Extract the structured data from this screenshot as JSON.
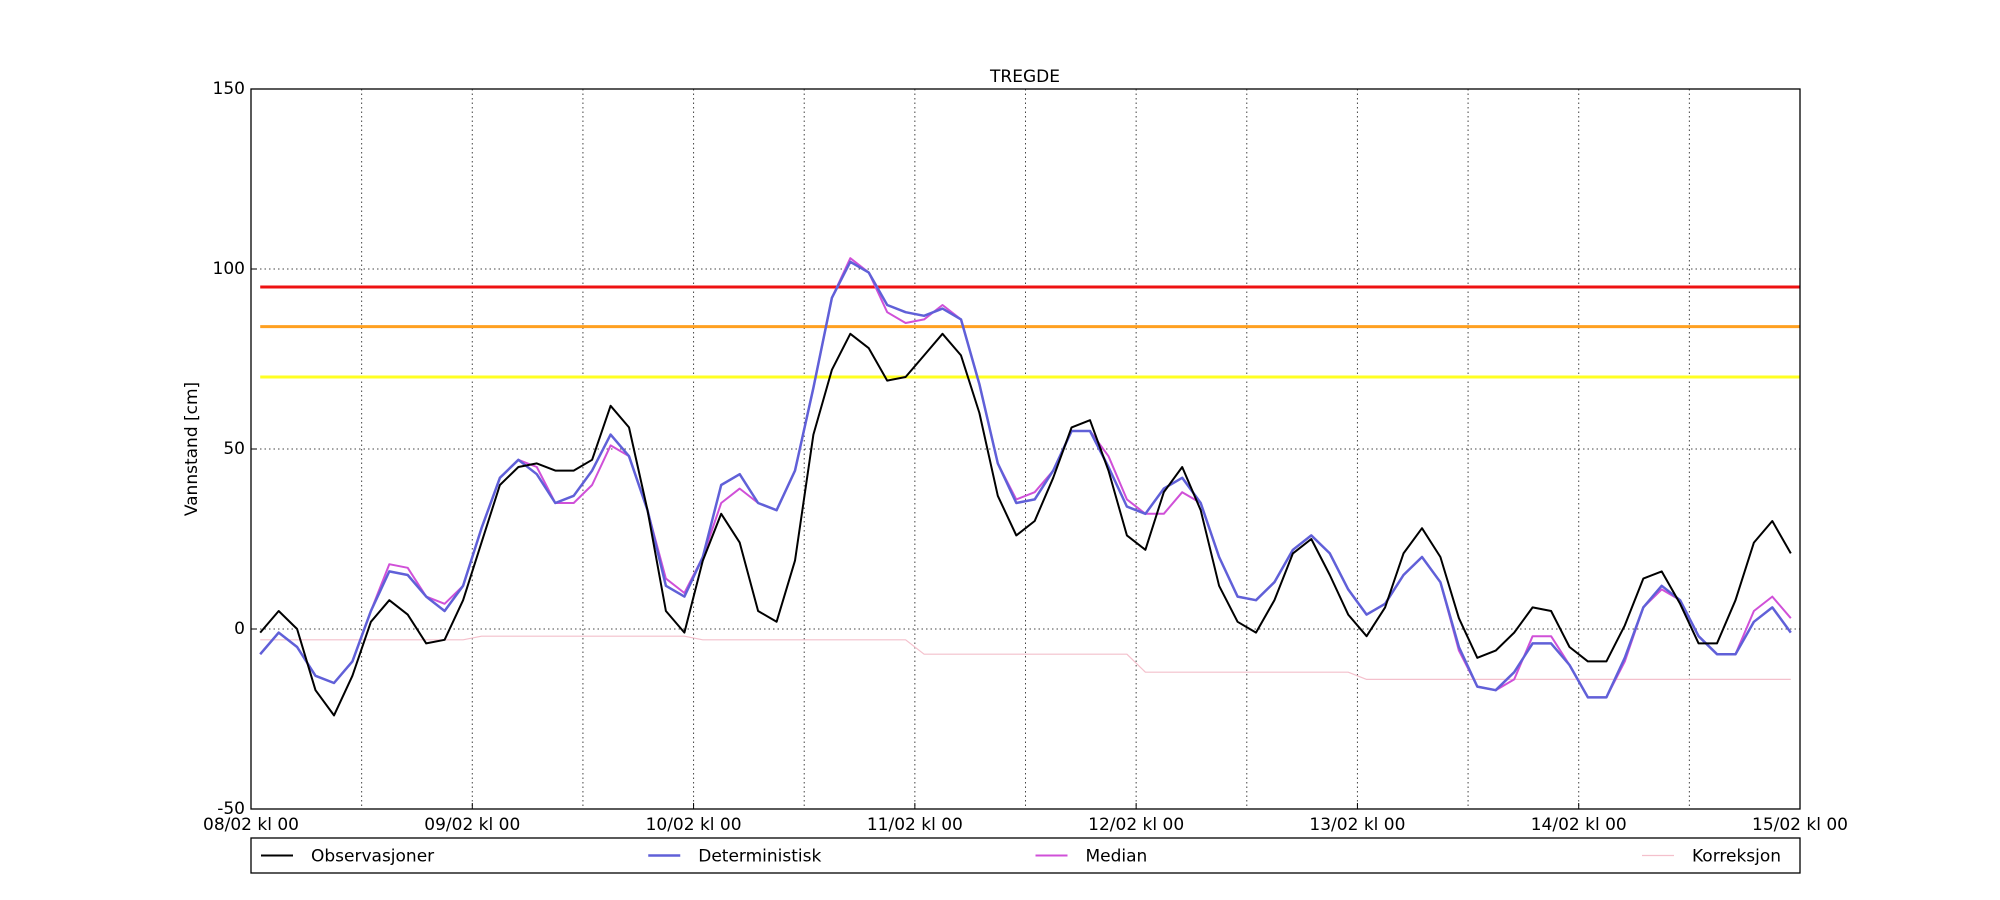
{
  "chart_data": {
    "type": "line",
    "title": "TREGDE",
    "y_label": "Vannstand [cm]",
    "x": [
      1,
      3,
      5,
      7,
      9,
      11,
      13,
      15,
      17,
      19,
      21,
      23,
      25,
      27,
      29,
      31,
      33,
      35,
      37,
      39,
      41,
      43,
      45,
      47,
      49,
      51,
      53,
      55,
      57,
      59,
      61,
      63,
      65,
      67,
      69,
      71,
      73,
      75,
      77,
      79,
      81,
      83,
      85,
      87,
      89,
      91,
      93,
      95,
      97,
      99,
      101,
      103,
      105,
      107,
      109,
      111,
      113,
      115,
      117,
      119,
      121,
      123,
      125,
      127,
      129,
      131,
      133,
      135,
      137,
      139,
      141,
      143,
      145,
      147,
      149,
      151,
      153,
      155,
      157,
      159,
      161,
      163,
      165,
      167
    ],
    "xlim": [
      0,
      168
    ],
    "xticks": [
      {
        "value": 0,
        "label": "08/02 kl 00"
      },
      {
        "value": 24,
        "label": "09/02 kl 00"
      },
      {
        "value": 48,
        "label": "10/02 kl 00"
      },
      {
        "value": 72,
        "label": "11/02 kl 00"
      },
      {
        "value": 96,
        "label": "12/02 kl 00"
      },
      {
        "value": 120,
        "label": "13/02 kl 00"
      },
      {
        "value": 144,
        "label": "14/02 kl 00"
      },
      {
        "value": 168,
        "label": "15/02 kl 00"
      }
    ],
    "xminor": [
      12,
      36,
      60,
      84,
      108,
      132,
      156
    ],
    "ylim": [
      -50,
      150
    ],
    "yticks": [
      -50,
      0,
      50,
      100,
      150
    ],
    "grid": true,
    "thresholds": [
      {
        "value": 95,
        "color": "#ee1111"
      },
      {
        "value": 84,
        "color": "#ffa020"
      },
      {
        "value": 70,
        "color": "#ffff22"
      }
    ],
    "series": [
      {
        "name": "Observasjoner",
        "color": "#000000",
        "width": 2,
        "values": [
          -1,
          5,
          0,
          -17,
          -24,
          -13,
          2,
          8,
          4,
          -4,
          -3,
          8,
          24,
          40,
          45,
          46,
          44,
          44,
          47,
          62,
          56,
          33,
          5,
          -1,
          19,
          32,
          24,
          5,
          2,
          19,
          54,
          72,
          82,
          78,
          69,
          70,
          76,
          82,
          76,
          60,
          37,
          26,
          30,
          42,
          56,
          58,
          44,
          26,
          22,
          38,
          45,
          33,
          12,
          2,
          -1,
          8,
          21,
          25,
          15,
          4,
          -2,
          6,
          21,
          28,
          20,
          3,
          -8,
          -6,
          -1,
          6,
          5,
          -5,
          -9,
          -9,
          1,
          14,
          16,
          7,
          -4,
          -4,
          8,
          24,
          30,
          21
        ]
      },
      {
        "name": "Deterministisk",
        "color": "#6060d8",
        "width": 2.5,
        "values": [
          -7,
          -1,
          -5,
          -13,
          -15,
          -9,
          5,
          16,
          15,
          9,
          5,
          12,
          28,
          42,
          47,
          43,
          35,
          37,
          44,
          54,
          48,
          33,
          12,
          9,
          20,
          40,
          43,
          35,
          33,
          44,
          67,
          92,
          102,
          99,
          90,
          88,
          87,
          89,
          86,
          68,
          46,
          35,
          36,
          44,
          55,
          55,
          45,
          34,
          32,
          39,
          42,
          35,
          20,
          9,
          8,
          13,
          22,
          26,
          21,
          11,
          4,
          7,
          15,
          20,
          13,
          -5,
          -16,
          -17,
          -12,
          -4,
          -4,
          -10,
          -19,
          -19,
          -8,
          6,
          12,
          8,
          -2,
          -7,
          -7,
          2,
          6,
          -1
        ]
      },
      {
        "name": "Median",
        "color": "#d050d8",
        "width": 2,
        "values": [
          -7,
          -1,
          -5,
          -13,
          -15,
          -9,
          5,
          18,
          17,
          9,
          7,
          12,
          28,
          42,
          47,
          45,
          35,
          35,
          40,
          51,
          48,
          33,
          14,
          10,
          20,
          35,
          39,
          35,
          33,
          44,
          67,
          92,
          103,
          99,
          88,
          85,
          86,
          90,
          86,
          68,
          46,
          36,
          38,
          44,
          55,
          55,
          48,
          36,
          32,
          32,
          38,
          35,
          20,
          9,
          8,
          13,
          22,
          26,
          21,
          11,
          4,
          7,
          15,
          20,
          13,
          -6,
          -16,
          -17,
          -14,
          -2,
          -2,
          -10,
          -19,
          -19,
          -9,
          6,
          11,
          8,
          -2,
          -7,
          -7,
          5,
          9,
          3
        ]
      },
      {
        "name": "Korreksjon",
        "color": "#f4c0cc",
        "width": 1.2,
        "values": [
          -3,
          -3,
          -3,
          -3,
          -3,
          -3,
          -3,
          -3,
          -3,
          -3,
          -3,
          -3,
          -2,
          -2,
          -2,
          -2,
          -2,
          -2,
          -2,
          -2,
          -2,
          -2,
          -2,
          -2,
          -3,
          -3,
          -3,
          -3,
          -3,
          -3,
          -3,
          -3,
          -3,
          -3,
          -3,
          -3,
          -7,
          -7,
          -7,
          -7,
          -7,
          -7,
          -7,
          -7,
          -7,
          -7,
          -7,
          -7,
          -12,
          -12,
          -12,
          -12,
          -12,
          -12,
          -12,
          -12,
          -12,
          -12,
          -12,
          -12,
          -14,
          -14,
          -14,
          -14,
          -14,
          -14,
          -14,
          -14,
          -14,
          -14,
          -14,
          -14,
          -14,
          -14,
          -14,
          -14,
          -14,
          -14,
          -14,
          -14,
          -14,
          -14,
          -14,
          -14
        ]
      }
    ]
  }
}
